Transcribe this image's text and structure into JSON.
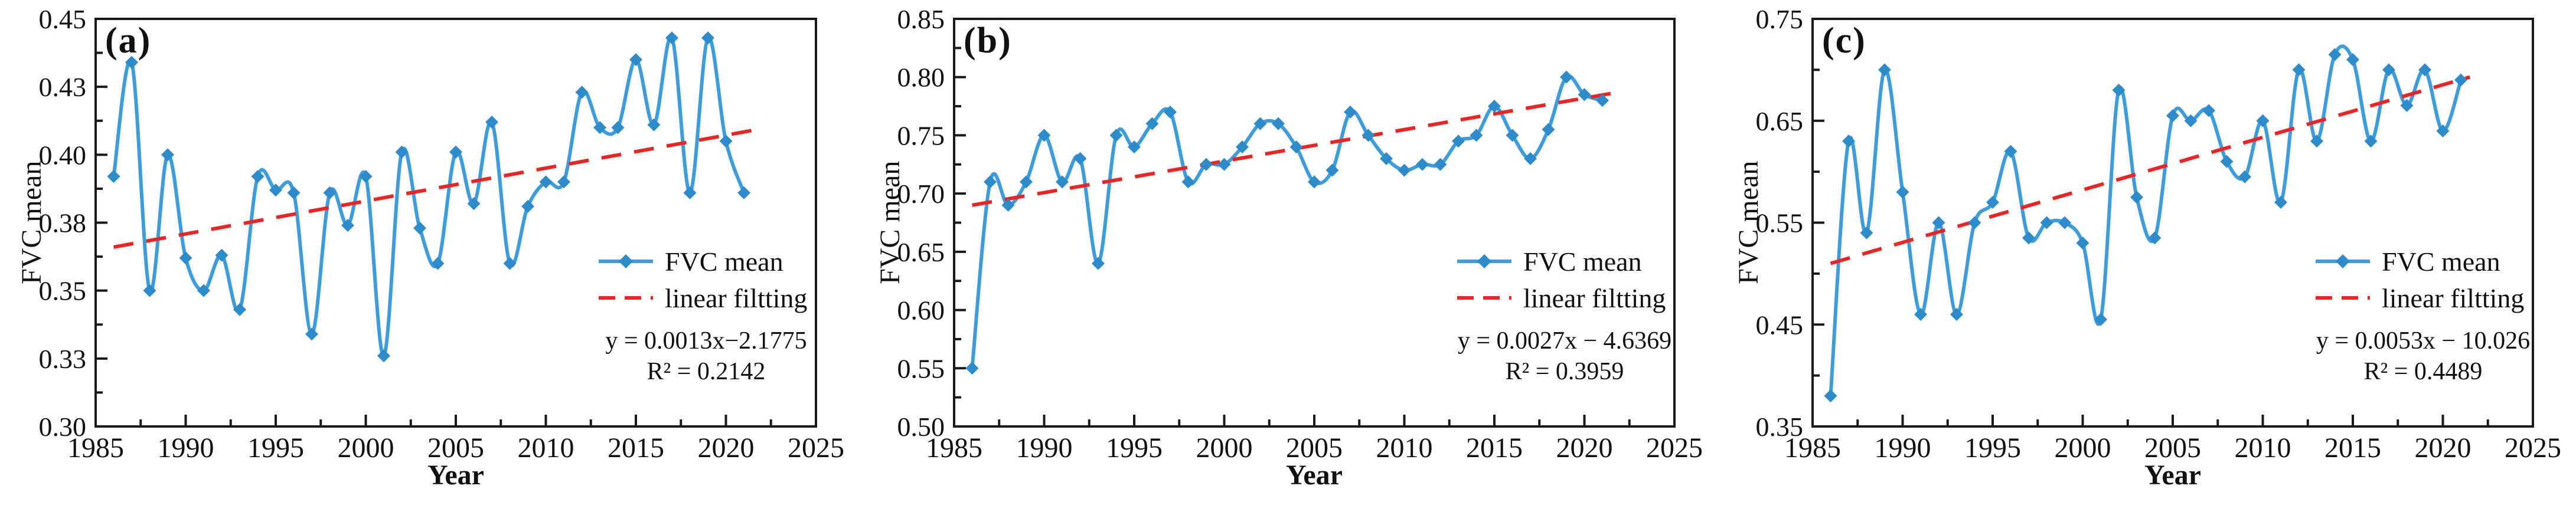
{
  "figure": {
    "background": "#ffffff",
    "axis_color": "#1a1a1a",
    "text_color": "#111111",
    "line_color": "#3D9CDB",
    "marker_color": "#2E8BC9",
    "trend_color": "#EE2424",
    "x_title": "Year",
    "y_title": "FVC mean",
    "legend": {
      "series_label": "FVC mean",
      "trend_label": "linear filtting"
    },
    "x_axis": {
      "min": 1985,
      "max": 2025,
      "major_ticks": [
        1985,
        1990,
        1995,
        2000,
        2005,
        2010,
        2015,
        2020,
        2025
      ],
      "minor_ticks": [
        1987.5,
        1992.5,
        1997.5,
        2002.5,
        2007.5,
        2012.5,
        2017.5,
        2022.5
      ]
    }
  },
  "chart_data": [
    {
      "type": "line",
      "panel_label": "(a)",
      "xlabel": "Year",
      "ylabel": "FVC mean",
      "legend_entries": [
        "FVC mean",
        "linear filtting"
      ],
      "legend_position": "right-center",
      "grid": false,
      "xlim": [
        1985,
        2025
      ],
      "ylim": [
        0.3,
        0.45
      ],
      "yticks": [
        {
          "value": 0.45,
          "text": "0.45"
        },
        {
          "value": 0.425,
          "text": "0.43"
        },
        {
          "value": 0.4,
          "text": "0.40"
        },
        {
          "value": 0.375,
          "text": "0.38"
        },
        {
          "value": 0.35,
          "text": "0.35"
        },
        {
          "value": 0.325,
          "text": "0.33"
        },
        {
          "value": 0.3,
          "text": "0.30"
        }
      ],
      "yticks_minor": [
        0.4375,
        0.4125,
        0.3875,
        0.3625,
        0.3375,
        0.3125
      ],
      "x": [
        1986,
        1987,
        1988,
        1989,
        1990,
        1991,
        1992,
        1993,
        1994,
        1995,
        1996,
        1997,
        1998,
        1999,
        2000,
        2001,
        2002,
        2003,
        2004,
        2005,
        2006,
        2007,
        2008,
        2009,
        2010,
        2011,
        2012,
        2013,
        2014,
        2015,
        2016,
        2017,
        2018,
        2019,
        2020,
        2021
      ],
      "values": [
        0.392,
        0.434,
        0.35,
        0.4,
        0.362,
        0.35,
        0.363,
        0.343,
        0.392,
        0.387,
        0.386,
        0.334,
        0.386,
        0.374,
        0.392,
        0.326,
        0.401,
        0.373,
        0.36,
        0.401,
        0.382,
        0.412,
        0.36,
        0.381,
        0.39,
        0.39,
        0.423,
        0.41,
        0.41,
        0.435,
        0.411,
        0.443,
        0.386,
        0.443,
        0.405,
        0.386
      ],
      "trend": {
        "x1": 1986,
        "y1": 0.366,
        "x2": 2021.5,
        "y2": 0.409
      },
      "equation": "y = 0.0013x−2.1775",
      "r2": "R² = 0.2142"
    },
    {
      "type": "line",
      "panel_label": "(b)",
      "xlabel": "Year",
      "ylabel": "FVC mean",
      "legend_entries": [
        "FVC mean",
        "linear filtting"
      ],
      "legend_position": "right-center",
      "grid": false,
      "xlim": [
        1985,
        2025
      ],
      "ylim": [
        0.5,
        0.85
      ],
      "yticks": [
        {
          "value": 0.85,
          "text": "0.85"
        },
        {
          "value": 0.8,
          "text": "0.80"
        },
        {
          "value": 0.75,
          "text": "0.75"
        },
        {
          "value": 0.7,
          "text": "0.70"
        },
        {
          "value": 0.65,
          "text": "0.65"
        },
        {
          "value": 0.6,
          "text": "0.60"
        },
        {
          "value": 0.55,
          "text": "0.55"
        },
        {
          "value": 0.5,
          "text": "0.50"
        }
      ],
      "yticks_minor": [
        0.825,
        0.775,
        0.725,
        0.675,
        0.625,
        0.575,
        0.525
      ],
      "x": [
        1986,
        1987,
        1988,
        1989,
        1990,
        1991,
        1992,
        1993,
        1994,
        1995,
        1996,
        1997,
        1998,
        1999,
        2000,
        2001,
        2002,
        2003,
        2004,
        2005,
        2006,
        2007,
        2008,
        2009,
        2010,
        2011,
        2012,
        2013,
        2014,
        2015,
        2016,
        2017,
        2018,
        2019,
        2020,
        2021
      ],
      "values": [
        0.55,
        0.71,
        0.69,
        0.71,
        0.75,
        0.71,
        0.73,
        0.64,
        0.75,
        0.74,
        0.76,
        0.77,
        0.71,
        0.725,
        0.725,
        0.74,
        0.76,
        0.76,
        0.74,
        0.71,
        0.72,
        0.77,
        0.75,
        0.73,
        0.72,
        0.725,
        0.725,
        0.745,
        0.75,
        0.775,
        0.75,
        0.73,
        0.755,
        0.8,
        0.785,
        0.78
      ],
      "trend": {
        "x1": 1986,
        "y1": 0.69,
        "x2": 2021.5,
        "y2": 0.786
      },
      "equation": "y = 0.0027x − 4.6369",
      "r2": "R² = 0.3959"
    },
    {
      "type": "line",
      "panel_label": "(c)",
      "xlabel": "Year",
      "ylabel": "FVC mean",
      "legend_entries": [
        "FVC mean",
        "linear filtting"
      ],
      "legend_position": "right-center",
      "grid": false,
      "xlim": [
        1985,
        2025
      ],
      "ylim": [
        0.35,
        0.75
      ],
      "yticks": [
        {
          "value": 0.75,
          "text": "0.75"
        },
        {
          "value": 0.65,
          "text": "0.65"
        },
        {
          "value": 0.55,
          "text": "0.55"
        },
        {
          "value": 0.45,
          "text": "0.45"
        },
        {
          "value": 0.35,
          "text": "0.35"
        }
      ],
      "yticks_minor": [
        0.7,
        0.6,
        0.5,
        0.4
      ],
      "x": [
        1986,
        1987,
        1988,
        1989,
        1990,
        1991,
        1992,
        1993,
        1994,
        1995,
        1996,
        1997,
        1998,
        1999,
        2000,
        2001,
        2002,
        2003,
        2004,
        2005,
        2006,
        2007,
        2008,
        2009,
        2010,
        2011,
        2012,
        2013,
        2014,
        2015,
        2016,
        2017,
        2018,
        2019,
        2020,
        2021
      ],
      "values": [
        0.38,
        0.63,
        0.54,
        0.7,
        0.58,
        0.46,
        0.55,
        0.46,
        0.55,
        0.57,
        0.62,
        0.535,
        0.55,
        0.55,
        0.53,
        0.455,
        0.68,
        0.575,
        0.535,
        0.655,
        0.65,
        0.66,
        0.61,
        0.595,
        0.65,
        0.57,
        0.7,
        0.63,
        0.715,
        0.71,
        0.63,
        0.7,
        0.665,
        0.7,
        0.64,
        0.69
      ],
      "trend": {
        "x1": 1986,
        "y1": 0.51,
        "x2": 2021.5,
        "y2": 0.693
      },
      "equation": "y = 0.0053x − 10.026",
      "r2": "R² = 0.4489"
    }
  ]
}
